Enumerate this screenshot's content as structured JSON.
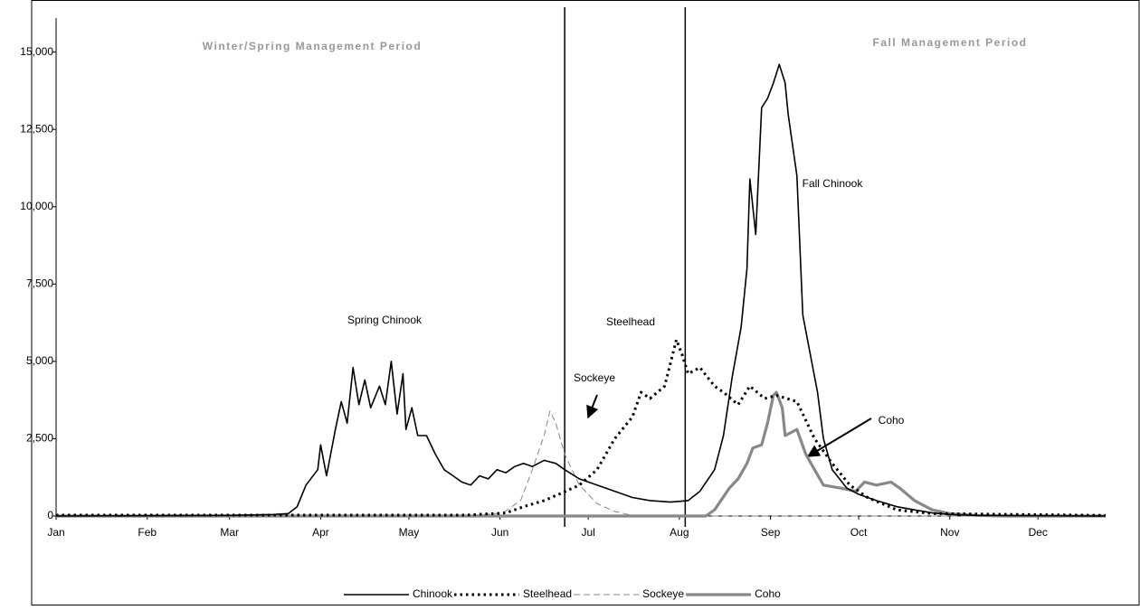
{
  "chart_data": {
    "type": "line",
    "annotations": [
      "Winter/Spring Management Period",
      "Fall Management Period",
      "Spring Chinook",
      "Steelhead",
      "Sockeye",
      "Fall Chinook",
      "Coho"
    ],
    "dividers": [
      174,
      215
    ],
    "xlim": [
      1,
      358
    ],
    "xticks": [
      {
        "value": 1,
        "label": "Jan"
      },
      {
        "value": 32,
        "label": "Feb"
      },
      {
        "value": 60,
        "label": "Mar"
      },
      {
        "value": 91,
        "label": "Apr"
      },
      {
        "value": 121,
        "label": "May"
      },
      {
        "value": 152,
        "label": "Jun"
      },
      {
        "value": 182,
        "label": "Jul"
      },
      {
        "value": 213,
        "label": "Aug"
      },
      {
        "value": 244,
        "label": "Sep"
      },
      {
        "value": 274,
        "label": "Oct"
      },
      {
        "value": 305,
        "label": "Nov"
      },
      {
        "value": 335,
        "label": "Dec"
      }
    ],
    "ylim": [
      0,
      16100
    ],
    "yticks": [
      0,
      {
        "value": 2500,
        "label": "2,500"
      },
      {
        "value": 5000,
        "label": "5,000"
      },
      {
        "value": 7500,
        "label": "7,500"
      },
      {
        "value": 10000,
        "label": "10,000"
      },
      {
        "value": 12500,
        "label": "12,500"
      },
      {
        "value": 15000,
        "label": "15,000"
      }
    ],
    "legend": "bottom",
    "series": [
      {
        "name": "Chinook",
        "color": "#000000",
        "style": "solid",
        "x": [
          1,
          60,
          75,
          80,
          83,
          86,
          90,
          91,
          93,
          96,
          98,
          100,
          102,
          104,
          106,
          108,
          111,
          113,
          115,
          117,
          119,
          120,
          122,
          124,
          127,
          130,
          133,
          136,
          139,
          142,
          145,
          148,
          151,
          154,
          157,
          160,
          163,
          167,
          171,
          174,
          179,
          185,
          191,
          197,
          203,
          210,
          216,
          220,
          225,
          228,
          231,
          234,
          236,
          237,
          239,
          241,
          243,
          245,
          247,
          249,
          250,
          253,
          255,
          257,
          260,
          262,
          265,
          270,
          274,
          280,
          287,
          293,
          299,
          305,
          314,
          358
        ],
        "values": [
          0,
          20,
          50,
          80,
          300,
          1000,
          1500,
          2300,
          1300,
          2800,
          3700,
          3000,
          4800,
          3600,
          4400,
          3500,
          4200,
          3600,
          5000,
          3300,
          4600,
          2800,
          3500,
          2600,
          2600,
          2000,
          1500,
          1300,
          1100,
          1000,
          1300,
          1200,
          1500,
          1400,
          1600,
          1700,
          1600,
          1800,
          1700,
          1500,
          1200,
          1000,
          800,
          600,
          500,
          450,
          500,
          800,
          1500,
          2600,
          4500,
          6100,
          8000,
          10900,
          9100,
          13200,
          13500,
          14000,
          14600,
          14000,
          13000,
          11000,
          6500,
          5500,
          4000,
          2500,
          1500,
          900,
          700,
          500,
          300,
          200,
          100,
          50,
          20,
          0
        ]
      },
      {
        "name": "Steelhead",
        "color": "#000000",
        "style": "dotted",
        "x": [
          1,
          140,
          154,
          160,
          167,
          172,
          179,
          185,
          191,
          197,
          200,
          203,
          208,
          212,
          214,
          216,
          220,
          225,
          228,
          233,
          237,
          242,
          246,
          253,
          259,
          265,
          271,
          277,
          287,
          299,
          358
        ],
        "values": [
          30,
          30,
          100,
          300,
          500,
          700,
          1000,
          1500,
          2500,
          3200,
          4000,
          3800,
          4200,
          5700,
          5200,
          4600,
          4800,
          4200,
          4000,
          3600,
          4200,
          3800,
          3900,
          3700,
          2500,
          1700,
          1000,
          600,
          200,
          80,
          20
        ]
      },
      {
        "name": "Sockeye",
        "color": "#888888",
        "style": "dashed",
        "x": [
          1,
          140,
          153,
          159,
          163,
          167,
          169,
          171,
          174,
          179,
          185,
          191,
          197,
          203,
          358
        ],
        "values": [
          0,
          0,
          100,
          500,
          1500,
          2600,
          3400,
          3000,
          2000,
          1000,
          400,
          150,
          20,
          0,
          0
        ]
      },
      {
        "name": "Coho",
        "color": "#888888",
        "style": "thick",
        "x": [
          1,
          222,
          225,
          230,
          233,
          236,
          238,
          241,
          243,
          245,
          246,
          248,
          249,
          253,
          256,
          259,
          262,
          268,
          273,
          276,
          280,
          285,
          288,
          293,
          299,
          305,
          314,
          323,
          358
        ],
        "values": [
          0,
          0,
          200,
          900,
          1200,
          1700,
          2200,
          2300,
          3000,
          3900,
          4000,
          3500,
          2600,
          2800,
          2000,
          1500,
          1000,
          900,
          800,
          1100,
          1000,
          1100,
          900,
          500,
          200,
          80,
          20,
          0,
          0
        ]
      }
    ]
  }
}
